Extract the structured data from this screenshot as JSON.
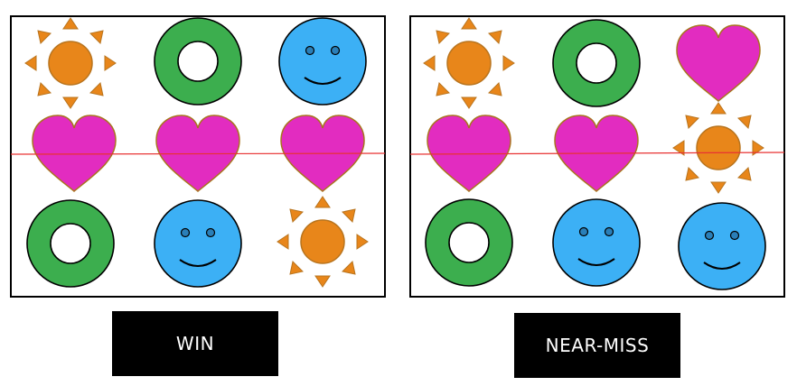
{
  "colors": {
    "sun": "#e8861a",
    "sun_outline": "#b8741e",
    "ring": "#3cae4e",
    "smiley": "#3cb0f5",
    "heart": "#e22cc0",
    "heart_outline": "#a8741e",
    "payline": "#e83232",
    "label_bg": "#000000",
    "label_text": "#ffffff"
  },
  "panels": [
    {
      "id": "win",
      "label": "WIN",
      "grid": [
        [
          "sun-icon",
          "ring-icon",
          "smiley-icon"
        ],
        [
          "heart-icon",
          "heart-icon",
          "heart-icon"
        ],
        [
          "ring-icon",
          "smiley-icon",
          "sun-icon"
        ]
      ]
    },
    {
      "id": "near-miss",
      "label": "NEAR-MISS",
      "grid": [
        [
          "sun-icon",
          "ring-icon",
          "heart-icon"
        ],
        [
          "heart-icon",
          "heart-icon",
          "sun-icon"
        ],
        [
          "ring-icon",
          "smiley-icon",
          "smiley-icon"
        ]
      ]
    }
  ]
}
